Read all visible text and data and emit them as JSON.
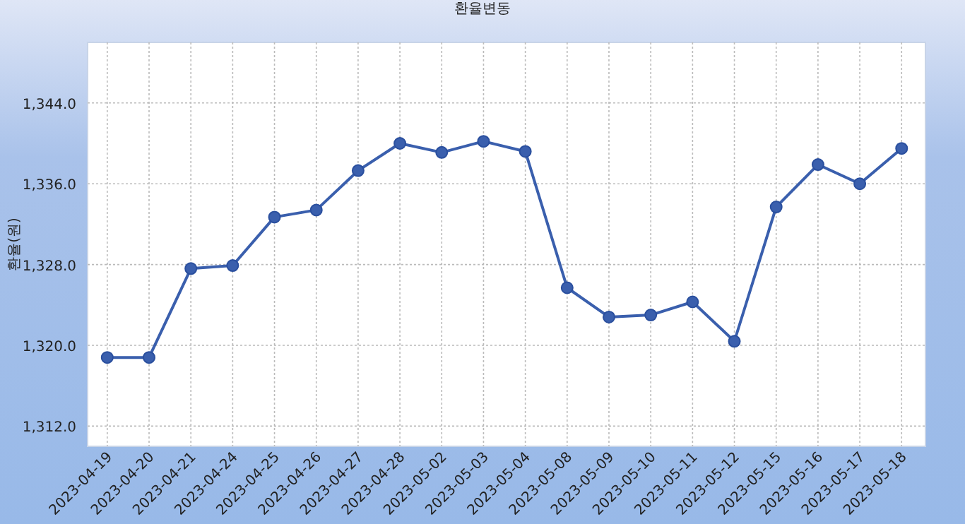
{
  "chart_data": {
    "type": "line",
    "title": "환율변동",
    "ylabel": "환율(원)",
    "categories": [
      "2023-04-19",
      "2023-04-20",
      "2023-04-21",
      "2023-04-24",
      "2023-04-25",
      "2023-04-26",
      "2023-04-27",
      "2023-04-28",
      "2023-05-02",
      "2023-05-03",
      "2023-05-04",
      "2023-05-08",
      "2023-05-09",
      "2023-05-10",
      "2023-05-11",
      "2023-05-12",
      "2023-05-15",
      "2023-05-16",
      "2023-05-17",
      "2023-05-18"
    ],
    "series": [
      {
        "color": "#3a5fad",
        "values": [
          1318.8,
          1318.8,
          1327.6,
          1327.9,
          1332.7,
          1333.4,
          1337.3,
          1340.0,
          1339.1,
          1340.2,
          1339.2,
          1325.7,
          1322.8,
          1323.0,
          1324.3,
          1320.4,
          1333.7,
          1337.9,
          1336.0,
          1339.5
        ]
      }
    ],
    "ylim": [
      1310,
      1350
    ],
    "yticks": [
      {
        "value": 1312,
        "label": "1,312.0"
      },
      {
        "value": 1320,
        "label": "1,320.0"
      },
      {
        "value": 1328,
        "label": "1,328.0"
      },
      {
        "value": 1336,
        "label": "1,336.0"
      },
      {
        "value": 1344,
        "label": "1,344.0"
      }
    ],
    "grid": true,
    "marker": "circle",
    "line_style": "solid"
  }
}
